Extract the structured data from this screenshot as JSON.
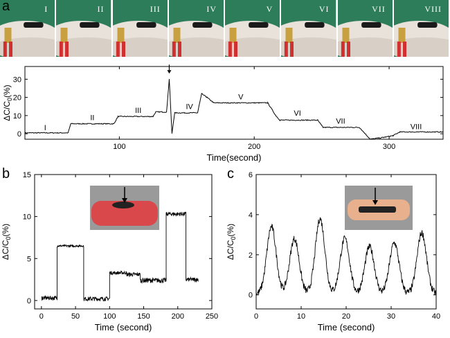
{
  "panel_labels": {
    "a": "a",
    "b": "b",
    "c": "c"
  },
  "photos": {
    "labels": [
      "I",
      "II",
      "III",
      "IV",
      "V",
      "VI",
      "VII",
      "VIII"
    ],
    "colors": {
      "background": "#2e7d5a",
      "glove": "#e8e2da",
      "sensor": "#1a1a1a",
      "clip": "#c8a040",
      "handle": "#d03030"
    }
  },
  "chart_data": [
    {
      "id": "a",
      "type": "line",
      "xlabel": "Time(second)",
      "ylabel": "ΔC/C₀(%)",
      "xlim": [
        30,
        340
      ],
      "ylim": [
        -3,
        37
      ],
      "xticks": [
        100,
        200,
        300
      ],
      "yticks": [
        0,
        10,
        20,
        30
      ],
      "color": "#000000",
      "segments": [
        [
          30,
          0.5
        ],
        [
          62,
          0.5
        ],
        [
          64,
          5.5
        ],
        [
          96,
          5.5
        ],
        [
          99,
          9.5
        ],
        [
          125,
          9.5
        ],
        [
          127,
          12
        ],
        [
          135,
          12
        ],
        [
          137,
          30
        ],
        [
          139,
          0
        ],
        [
          141,
          11.5
        ],
        [
          158,
          11.5
        ],
        [
          161,
          22
        ],
        [
          165,
          20
        ],
        [
          170,
          17
        ],
        [
          210,
          17
        ],
        [
          216,
          10
        ],
        [
          219,
          7.5
        ],
        [
          247,
          7.5
        ],
        [
          251,
          3.5
        ],
        [
          278,
          3.5
        ],
        [
          286,
          -3
        ],
        [
          296,
          -2
        ],
        [
          303,
          -1
        ],
        [
          308,
          1
        ],
        [
          340,
          1
        ]
      ],
      "region_labels": [
        {
          "text": "I",
          "x": 45,
          "y": 2
        },
        {
          "text": "II",
          "x": 80,
          "y": 7.5
        },
        {
          "text": "III",
          "x": 114,
          "y": 11.5
        },
        {
          "text": "IV",
          "x": 152,
          "y": 13.5
        },
        {
          "text": "V",
          "x": 190,
          "y": 19
        },
        {
          "text": "VI",
          "x": 232,
          "y": 10
        },
        {
          "text": "VII",
          "x": 264,
          "y": 5.5
        },
        {
          "text": "VIII",
          "x": 320,
          "y": 2.5
        }
      ],
      "arrow_at": {
        "x": 137,
        "y": 35
      }
    },
    {
      "id": "b",
      "type": "line",
      "xlabel": "Time (second)",
      "ylabel": "ΔC/C₀(%)",
      "xlim": [
        -10,
        250
      ],
      "ylim": [
        -1,
        15
      ],
      "xticks": [
        0,
        50,
        100,
        150,
        200,
        250
      ],
      "yticks": [
        0,
        5,
        10,
        15
      ],
      "color": "#000000",
      "levels": [
        {
          "from": 0,
          "to": 23,
          "value": 0.3,
          "noise": 0.25
        },
        {
          "from": 23,
          "to": 62,
          "value": 6.5,
          "noise": 0.12
        },
        {
          "from": 62,
          "to": 100,
          "value": 0.2,
          "noise": 0.25
        },
        {
          "from": 100,
          "to": 125,
          "value": 3.3,
          "noise": 0.2
        },
        {
          "from": 125,
          "to": 145,
          "value": 3.1,
          "noise": 0.25
        },
        {
          "from": 145,
          "to": 183,
          "value": 2.4,
          "noise": 0.3
        },
        {
          "from": 183,
          "to": 212,
          "value": 10.3,
          "noise": 0.25
        },
        {
          "from": 212,
          "to": 230,
          "value": 2.5,
          "noise": 0.25
        }
      ],
      "inset": {
        "colors": {
          "body": "#d9484a",
          "sensor": "#222222",
          "frame": "#9a9a9a"
        }
      }
    },
    {
      "id": "c",
      "type": "line",
      "xlabel": "Time (second)",
      "ylabel": "ΔC/C₀(%)",
      "xlim": [
        0,
        40
      ],
      "ylim": [
        -0.7,
        6
      ],
      "xticks": [
        0,
        10,
        20,
        30,
        40
      ],
      "yticks": [
        0,
        2,
        4,
        6
      ],
      "color": "#000000",
      "peaks": [
        {
          "t": 3.4,
          "value": 3.4
        },
        {
          "t": 8.5,
          "value": 2.8
        },
        {
          "t": 14.2,
          "value": 3.8
        },
        {
          "t": 19.7,
          "value": 2.8
        },
        {
          "t": 25.2,
          "value": 2.4
        },
        {
          "t": 30.7,
          "value": 2.6
        },
        {
          "t": 36.8,
          "value": 3.1
        }
      ],
      "baseline": 0.05,
      "inset": {
        "colors": {
          "body": "#e8b08c",
          "sensor": "#222222",
          "frame": "#9a9a9a"
        }
      }
    }
  ]
}
